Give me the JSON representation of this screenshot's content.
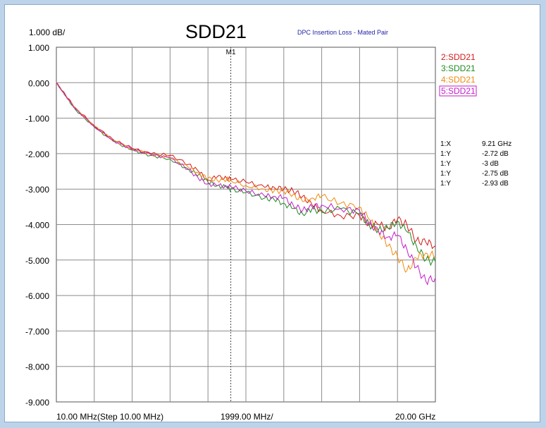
{
  "chart_data": {
    "type": "line",
    "title": "SDD21",
    "subtitle": "DPC Insertion Loss - Mated Pair",
    "scale_label": "1.000 dB/",
    "ylim": [
      -9,
      1
    ],
    "y_ticks": [
      "1.000",
      "0.000",
      "-1.000",
      "-2.000",
      "-3.000",
      "-4.000",
      "-5.000",
      "-6.000",
      "-7.000",
      "-8.000",
      "-9.000"
    ],
    "xlim_ghz": [
      0.01,
      20.0
    ],
    "x_labels": {
      "start": "10.00 MHz(Step 10.00 MHz)",
      "center": "1999.00 MHz/",
      "stop": "20.00 GHz"
    },
    "grid": true,
    "legend_position": "top-right",
    "marker": {
      "label": "M1",
      "x_ghz": 9.21,
      "readout": [
        {
          "label": "1:X",
          "value": "9.21 GHz",
          "color": "#000000"
        },
        {
          "label": "1:Y",
          "value": "-2.72 dB",
          "color": "#d21a1a"
        },
        {
          "label": "1:Y",
          "value": "-3 dB",
          "color": "#1e8a1e"
        },
        {
          "label": "1:Y",
          "value": "-2.75 dB",
          "color": "#f08a10"
        },
        {
          "label": "1:Y",
          "value": "-2.93 dB",
          "color": "#c41ec8"
        }
      ]
    },
    "series": [
      {
        "name": "2:SDD21",
        "color": "#d21a1a",
        "x": [
          0.01,
          0.5,
          1,
          2,
          3,
          4,
          5,
          6,
          7,
          7.5,
          8,
          8.5,
          9,
          9.21,
          10,
          11,
          11.5,
          12,
          12.5,
          13,
          13.5,
          14,
          15,
          16,
          16.5,
          17,
          17.5,
          18,
          18.5,
          19,
          19.5,
          20
        ],
        "y": [
          0.0,
          -0.35,
          -0.7,
          -1.2,
          -1.6,
          -1.85,
          -2.0,
          -2.05,
          -2.3,
          -2.5,
          -2.75,
          -2.65,
          -2.7,
          -2.72,
          -2.8,
          -2.95,
          -2.95,
          -3.0,
          -3.05,
          -3.2,
          -3.45,
          -3.6,
          -3.75,
          -3.75,
          -4.0,
          -4.0,
          -4.1,
          -3.85,
          -4.0,
          -4.45,
          -4.5,
          -4.6
        ]
      },
      {
        "name": "3:SDD21",
        "color": "#1e8a1e",
        "x": [
          0.01,
          0.5,
          1,
          2,
          3,
          4,
          5,
          6,
          7,
          7.5,
          8,
          8.5,
          9,
          9.21,
          10,
          11,
          11.5,
          12,
          12.5,
          13,
          13.5,
          14,
          15,
          16,
          16.5,
          17,
          17.5,
          18,
          18.5,
          19,
          19.5,
          20
        ],
        "y": [
          0.0,
          -0.38,
          -0.75,
          -1.25,
          -1.65,
          -1.9,
          -2.05,
          -2.15,
          -2.45,
          -2.6,
          -2.8,
          -2.9,
          -2.95,
          -3.0,
          -3.1,
          -3.25,
          -3.3,
          -3.4,
          -3.55,
          -3.7,
          -3.55,
          -3.65,
          -3.55,
          -3.7,
          -4.0,
          -4.15,
          -4.1,
          -3.9,
          -4.2,
          -4.6,
          -5.0,
          -5.05
        ]
      },
      {
        "name": "4:SDD21",
        "color": "#f08a10",
        "x": [
          0.01,
          0.5,
          1,
          2,
          3,
          4,
          5,
          6,
          7,
          7.5,
          8,
          8.5,
          9,
          9.21,
          10,
          11,
          11.5,
          12,
          12.5,
          13,
          13.5,
          14,
          15,
          16,
          16.5,
          17,
          17.5,
          18,
          18.5,
          19,
          19.5,
          20
        ],
        "y": [
          0.0,
          -0.36,
          -0.72,
          -1.22,
          -1.62,
          -1.87,
          -2.02,
          -2.1,
          -2.4,
          -2.55,
          -2.7,
          -2.75,
          -2.72,
          -2.75,
          -2.9,
          -3.0,
          -3.05,
          -3.05,
          -3.15,
          -3.35,
          -3.25,
          -3.2,
          -3.4,
          -3.5,
          -3.85,
          -4.2,
          -4.6,
          -4.9,
          -5.3,
          -4.95,
          -4.8,
          -4.9
        ]
      },
      {
        "name": "5:SDD21",
        "color": "#c41ec8",
        "x": [
          0.01,
          0.5,
          1,
          2,
          3,
          4,
          5,
          6,
          7,
          7.5,
          8,
          8.5,
          9,
          9.21,
          10,
          11,
          11.5,
          12,
          12.5,
          13,
          13.5,
          14,
          15,
          16,
          16.5,
          17,
          17.5,
          18,
          18.5,
          19,
          19.5,
          20
        ],
        "y": [
          0.0,
          -0.37,
          -0.73,
          -1.23,
          -1.63,
          -1.88,
          -2.03,
          -2.12,
          -2.45,
          -2.7,
          -2.85,
          -2.9,
          -2.92,
          -2.93,
          -3.05,
          -3.2,
          -3.2,
          -3.25,
          -3.45,
          -3.6,
          -3.5,
          -3.45,
          -3.55,
          -3.6,
          -3.95,
          -4.2,
          -4.35,
          -4.3,
          -4.7,
          -5.2,
          -5.6,
          -5.5
        ]
      }
    ]
  }
}
